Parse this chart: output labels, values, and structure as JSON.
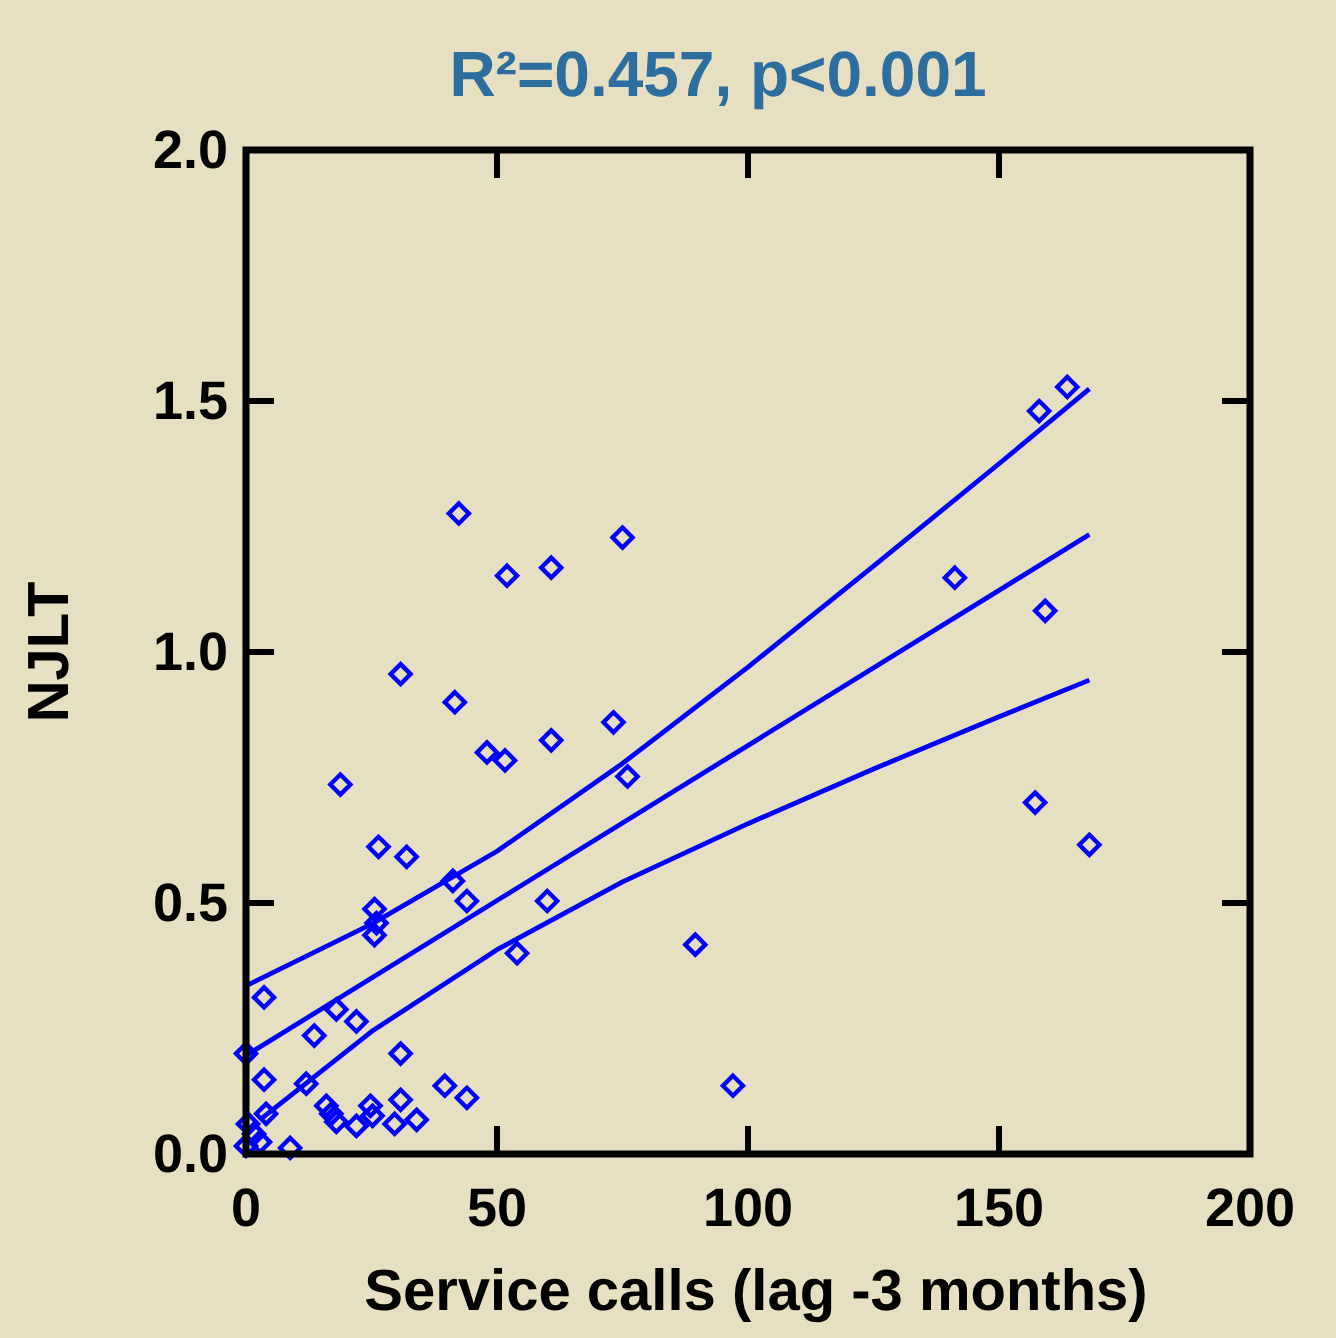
{
  "chart_data": {
    "type": "scatter",
    "title": "R²=0.457, p<0.001",
    "xlabel": "Service calls (lag -3 months)",
    "ylabel": "NJLT",
    "xlim": [
      0,
      200
    ],
    "xticks": [
      0,
      50,
      100,
      150,
      200
    ],
    "ylim": [
      0,
      2
    ],
    "yticks": [
      {
        "value": 0,
        "label": "0.0"
      },
      {
        "value": 0.5,
        "label": "0.5"
      },
      {
        "value": 1,
        "label": "1.0"
      },
      {
        "value": 1.5,
        "label": "1.5"
      },
      {
        "value": 2,
        "label": "2.0"
      }
    ],
    "grid": false,
    "series": [
      {
        "color": "#0000ff",
        "marker": "diamond",
        "x": [
          42.4,
          52,
          60.8,
          75,
          30.8,
          41.6,
          48,
          51.6,
          60.8,
          73.2,
          76,
          18.8,
          26.4,
          32,
          41.2,
          44,
          25.6,
          26,
          25.6,
          60,
          54,
          89.5,
          3.6,
          18,
          22,
          13.6,
          30.8,
          0,
          3.6,
          12,
          39.6,
          44,
          30.8,
          97,
          29.6,
          34,
          24.8,
          25.2,
          16,
          17,
          18,
          22,
          4,
          0.4,
          1.6,
          2.8,
          0,
          8.8,
          141.2,
          159.2,
          158,
          163.6,
          157.2,
          168
        ],
        "values": [
          1.276,
          1.152,
          1.168,
          1.228,
          0.956,
          0.9,
          0.8,
          0.784,
          0.824,
          0.86,
          0.752,
          0.736,
          0.612,
          0.592,
          0.544,
          0.504,
          0.488,
          0.46,
          0.436,
          0.504,
          0.4,
          0.417,
          0.312,
          0.288,
          0.264,
          0.236,
          0.2,
          0.2,
          0.148,
          0.14,
          0.136,
          0.112,
          0.108,
          0.136,
          0.06,
          0.068,
          0.096,
          0.076,
          0.096,
          0.08,
          0.064,
          0.056,
          0.08,
          0.06,
          0.04,
          0.024,
          0.016,
          0.012,
          1.148,
          1.082,
          1.48,
          1.528,
          0.7,
          0.616
        ]
      },
      {
        "type": "line",
        "color": "#0000ff",
        "line_style": "solid",
        "x": [
          0,
          168
        ],
        "values": [
          0.196,
          1.234
        ]
      },
      {
        "type": "line",
        "color": "#0000ff",
        "line_style": "solid",
        "x": [
          0,
          25,
          50,
          75,
          100,
          125,
          150,
          168
        ],
        "values": [
          0.335,
          0.458,
          0.603,
          0.778,
          0.97,
          1.171,
          1.375,
          1.524
        ]
      },
      {
        "type": "line",
        "color": "#0000ff",
        "line_style": "solid",
        "x": [
          3,
          25,
          50,
          75,
          100,
          125,
          150,
          168
        ],
        "values": [
          0.07,
          0.244,
          0.407,
          0.542,
          0.658,
          0.767,
          0.871,
          0.944
        ]
      }
    ]
  }
}
